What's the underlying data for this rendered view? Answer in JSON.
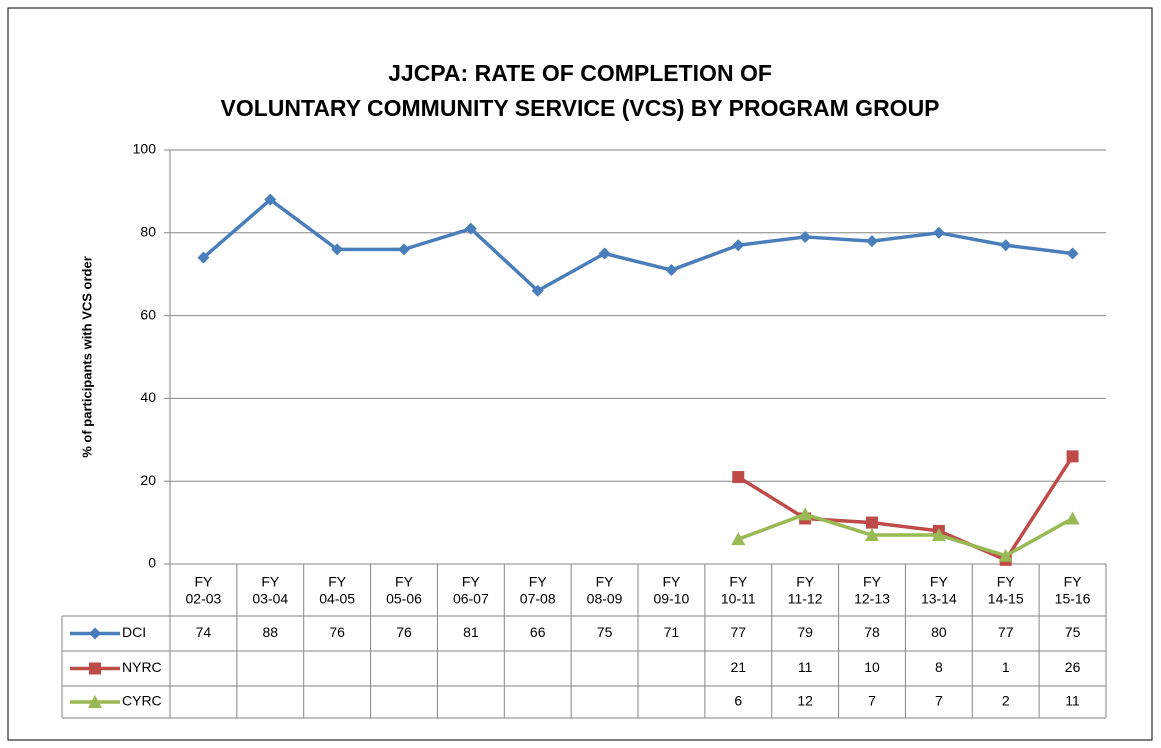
{
  "chart_data": {
    "type": "line",
    "title": [
      "JJCPA: RATE OF COMPLETION OF",
      "VOLUNTARY COMMUNITY SERVICE (VCS) BY PROGRAM GROUP"
    ],
    "y_label": "% of participants  with VCS order",
    "categories": [
      "FY 02-03",
      "FY 03-04",
      "FY 04-05",
      "FY 05-06",
      "FY 06-07",
      "FY 07-08",
      "FY 08-09",
      "FY 09-10",
      "FY 10-11",
      "FY 11-12",
      "FY 12-13",
      "FY 13-14",
      "FY 14-15",
      "FY 15-16"
    ],
    "series": [
      {
        "name": "DCI",
        "color": "#4a7ebb",
        "marker": "diamond",
        "values": [
          74,
          88,
          76,
          76,
          81,
          66,
          75,
          71,
          77,
          79,
          78,
          80,
          77,
          75
        ]
      },
      {
        "name": "NYRC",
        "color": "#be4b48",
        "marker": "square",
        "values": [
          null,
          null,
          null,
          null,
          null,
          null,
          null,
          null,
          21,
          11,
          10,
          8,
          1,
          26
        ]
      },
      {
        "name": "CYRC",
        "color": "#98b954",
        "marker": "triangle",
        "values": [
          null,
          null,
          null,
          null,
          null,
          null,
          null,
          null,
          6,
          12,
          7,
          7,
          2,
          11
        ]
      }
    ],
    "ylim": [
      0,
      100
    ],
    "yticks": [
      0,
      20,
      40,
      60,
      80,
      100
    ],
    "grid": true,
    "data_table": true
  }
}
